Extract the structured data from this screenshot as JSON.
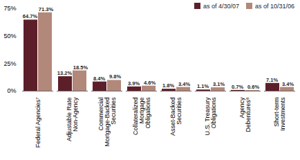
{
  "chart_data": {
    "type": "bar",
    "categories": [
      "Federal Agencies⁷",
      "Adjustable Rate Non-Agency",
      "Commercial Mortgage-Backed Securities",
      "Collateralized Mortgage Obligations",
      "Asset-Backed Securities",
      "U.S. Treasury Obligations",
      "Agency Debentures⁸",
      "Short-term Investments"
    ],
    "series": [
      {
        "name": "as of 4/30/07",
        "color": "#5c1f2a",
        "values": [
          64.7,
          13.2,
          8.4,
          3.9,
          1.8,
          1.1,
          0.7,
          7.1
        ],
        "value_labels": [
          "64.7%",
          "13.2%",
          "8.4%",
          "3.9%",
          "1.8%",
          "1.1%",
          "0.7%",
          "7.1%"
        ]
      },
      {
        "name": "as of 10/31/06",
        "color": "#b2887a",
        "values": [
          71.3,
          18.5,
          9.8,
          4.6,
          3.4,
          3.1,
          0.6,
          3.4
        ],
        "value_labels": [
          "71.3%",
          "18.5%",
          "9.8%",
          "4.6%",
          "3.4%",
          "3.1%",
          "0.6%",
          "3.4%"
        ]
      }
    ],
    "ylim": [
      0,
      75
    ],
    "yticks": [
      {
        "value": 0,
        "label": "0%"
      },
      {
        "value": 25,
        "label": "25%"
      },
      {
        "value": 50,
        "label": "50%"
      },
      {
        "value": 75,
        "label": "75%"
      }
    ],
    "grid": false,
    "legend": "top-right",
    "data_labels": true
  }
}
